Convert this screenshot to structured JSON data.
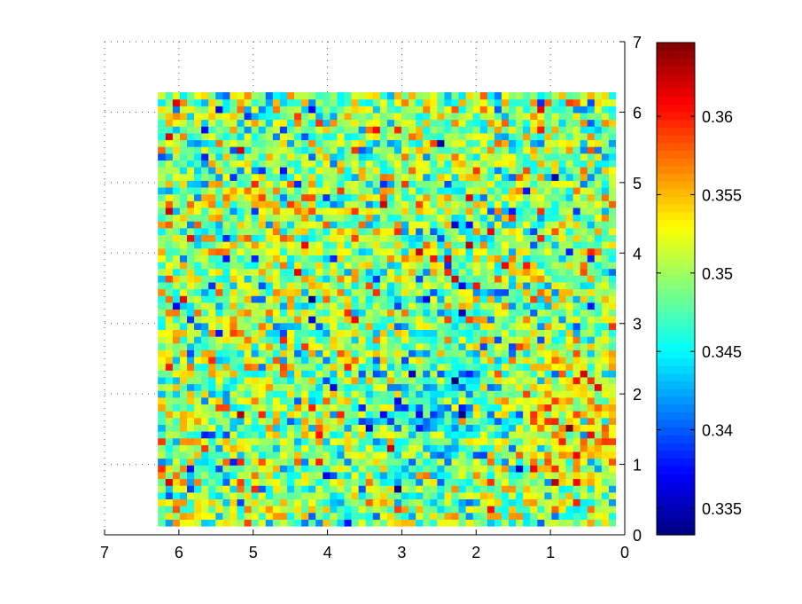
{
  "chart_data": {
    "type": "heatmap",
    "title": "",
    "xlabel": "",
    "ylabel": "",
    "x_axis": {
      "direction": "reversed",
      "lim": [
        0,
        7
      ],
      "ticks": [
        7,
        6,
        5,
        4,
        3,
        2,
        1,
        0
      ],
      "tick_labels": [
        "7",
        "6",
        "5",
        "4",
        "3",
        "2",
        "1",
        "0"
      ],
      "position": "bottom"
    },
    "y_axis": {
      "lim": [
        0,
        7
      ],
      "ticks": [
        0,
        1,
        2,
        3,
        4,
        5,
        6,
        7
      ],
      "tick_labels": [
        "0",
        "1",
        "2",
        "3",
        "4",
        "5",
        "6",
        "7"
      ],
      "position": "right"
    },
    "grid": "dotted, upper-left region",
    "data_extent": {
      "x": [
        0.126,
        6.283
      ],
      "y": [
        0.126,
        6.283
      ]
    },
    "grid_size": {
      "cols": 64,
      "rows": 64
    },
    "value_range": [
      0.3333,
      0.3647
    ],
    "colormap": "jet",
    "colorbar": {
      "position": "right",
      "ticks": [
        0.335,
        0.34,
        0.345,
        0.35,
        0.355,
        0.36
      ],
      "tick_labels": [
        "0.335",
        "0.34",
        "0.345",
        "0.35",
        "0.355",
        "0.36"
      ]
    },
    "pattern": "noisy field around 0.349; low-value cluster near x=2.5, y=1.8; high-value cluster near x=0.8, y=1.6",
    "colors": {
      "low": "#0000ff",
      "mid": "#80ff80",
      "high": "#800000"
    }
  }
}
